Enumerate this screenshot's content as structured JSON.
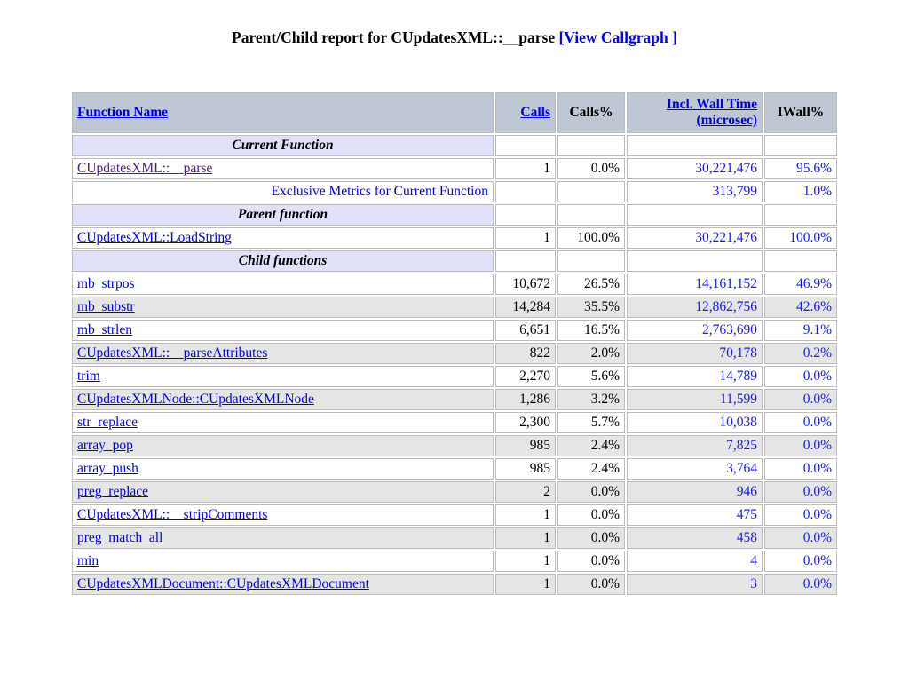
{
  "title": {
    "text": "Parent/Child report for CUpdatesXML::__parse",
    "callgraph_label": "[View Callgraph ]"
  },
  "colors": {
    "header_bg": "#bfc6d4",
    "section_bg": "#e1e1fa",
    "shaded_row_bg": "#e5e5e5",
    "link_blue": "#0000ee",
    "visited_link_purple": "#551a8b",
    "metric_blue": "#1a1aee",
    "cell_border": "#bcbcbc"
  },
  "table": {
    "headers": [
      {
        "label": "Function Name",
        "sortable": true
      },
      {
        "label": "Calls",
        "sortable": true
      },
      {
        "label": "Calls%",
        "sortable": false
      },
      {
        "label": "Incl. Wall Time (microsec)",
        "sortable": true
      },
      {
        "label": "IWall%",
        "sortable": false
      }
    ],
    "rows": [
      {
        "type": "section",
        "label": "Current Function"
      },
      {
        "type": "data",
        "label": "CUpdatesXML::__parse",
        "link": true,
        "visited": true,
        "calls": "1",
        "calls_pct": "0.0%",
        "wall": "30,221,476",
        "wall_pct": "95.6%",
        "shaded": false
      },
      {
        "type": "data",
        "label": "Exclusive Metrics for Current Function",
        "link": false,
        "align": "right",
        "calls": "",
        "calls_pct": "",
        "wall": "313,799",
        "wall_pct": "1.0%",
        "shaded": false
      },
      {
        "type": "section",
        "label": "Parent function"
      },
      {
        "type": "data",
        "label": "CUpdatesXML::LoadString",
        "link": true,
        "calls": "1",
        "calls_pct": "100.0%",
        "wall": "30,221,476",
        "wall_pct": "100.0%",
        "shaded": false
      },
      {
        "type": "section",
        "label": "Child functions"
      },
      {
        "type": "data",
        "label": "mb_strpos",
        "link": true,
        "calls": "10,672",
        "calls_pct": "26.5%",
        "wall": "14,161,152",
        "wall_pct": "46.9%",
        "shaded": false
      },
      {
        "type": "data",
        "label": "mb_substr",
        "link": true,
        "calls": "14,284",
        "calls_pct": "35.5%",
        "wall": "12,862,756",
        "wall_pct": "42.6%",
        "shaded": true
      },
      {
        "type": "data",
        "label": "mb_strlen",
        "link": true,
        "calls": "6,651",
        "calls_pct": "16.5%",
        "wall": "2,763,690",
        "wall_pct": "9.1%",
        "shaded": false
      },
      {
        "type": "data",
        "label": "CUpdatesXML::__parseAttributes",
        "link": true,
        "calls": "822",
        "calls_pct": "2.0%",
        "wall": "70,178",
        "wall_pct": "0.2%",
        "shaded": true
      },
      {
        "type": "data",
        "label": "trim",
        "link": true,
        "calls": "2,270",
        "calls_pct": "5.6%",
        "wall": "14,789",
        "wall_pct": "0.0%",
        "shaded": false
      },
      {
        "type": "data",
        "label": "CUpdatesXMLNode::CUpdatesXMLNode",
        "link": true,
        "calls": "1,286",
        "calls_pct": "3.2%",
        "wall": "11,599",
        "wall_pct": "0.0%",
        "shaded": true
      },
      {
        "type": "data",
        "label": "str_replace",
        "link": true,
        "calls": "2,300",
        "calls_pct": "5.7%",
        "wall": "10,038",
        "wall_pct": "0.0%",
        "shaded": false
      },
      {
        "type": "data",
        "label": "array_pop",
        "link": true,
        "calls": "985",
        "calls_pct": "2.4%",
        "wall": "7,825",
        "wall_pct": "0.0%",
        "shaded": true
      },
      {
        "type": "data",
        "label": "array_push",
        "link": true,
        "calls": "985",
        "calls_pct": "2.4%",
        "wall": "3,764",
        "wall_pct": "0.0%",
        "shaded": false
      },
      {
        "type": "data",
        "label": "preg_replace",
        "link": true,
        "calls": "2",
        "calls_pct": "0.0%",
        "wall": "946",
        "wall_pct": "0.0%",
        "shaded": true
      },
      {
        "type": "data",
        "label": "CUpdatesXML::__stripComments",
        "link": true,
        "calls": "1",
        "calls_pct": "0.0%",
        "wall": "475",
        "wall_pct": "0.0%",
        "shaded": false
      },
      {
        "type": "data",
        "label": "preg_match_all",
        "link": true,
        "calls": "1",
        "calls_pct": "0.0%",
        "wall": "458",
        "wall_pct": "0.0%",
        "shaded": true
      },
      {
        "type": "data",
        "label": "min",
        "link": true,
        "calls": "1",
        "calls_pct": "0.0%",
        "wall": "4",
        "wall_pct": "0.0%",
        "shaded": false
      },
      {
        "type": "data",
        "label": "CUpdatesXMLDocument::CUpdatesXMLDocument",
        "link": true,
        "calls": "1",
        "calls_pct": "0.0%",
        "wall": "3",
        "wall_pct": "0.0%",
        "shaded": true
      }
    ]
  }
}
